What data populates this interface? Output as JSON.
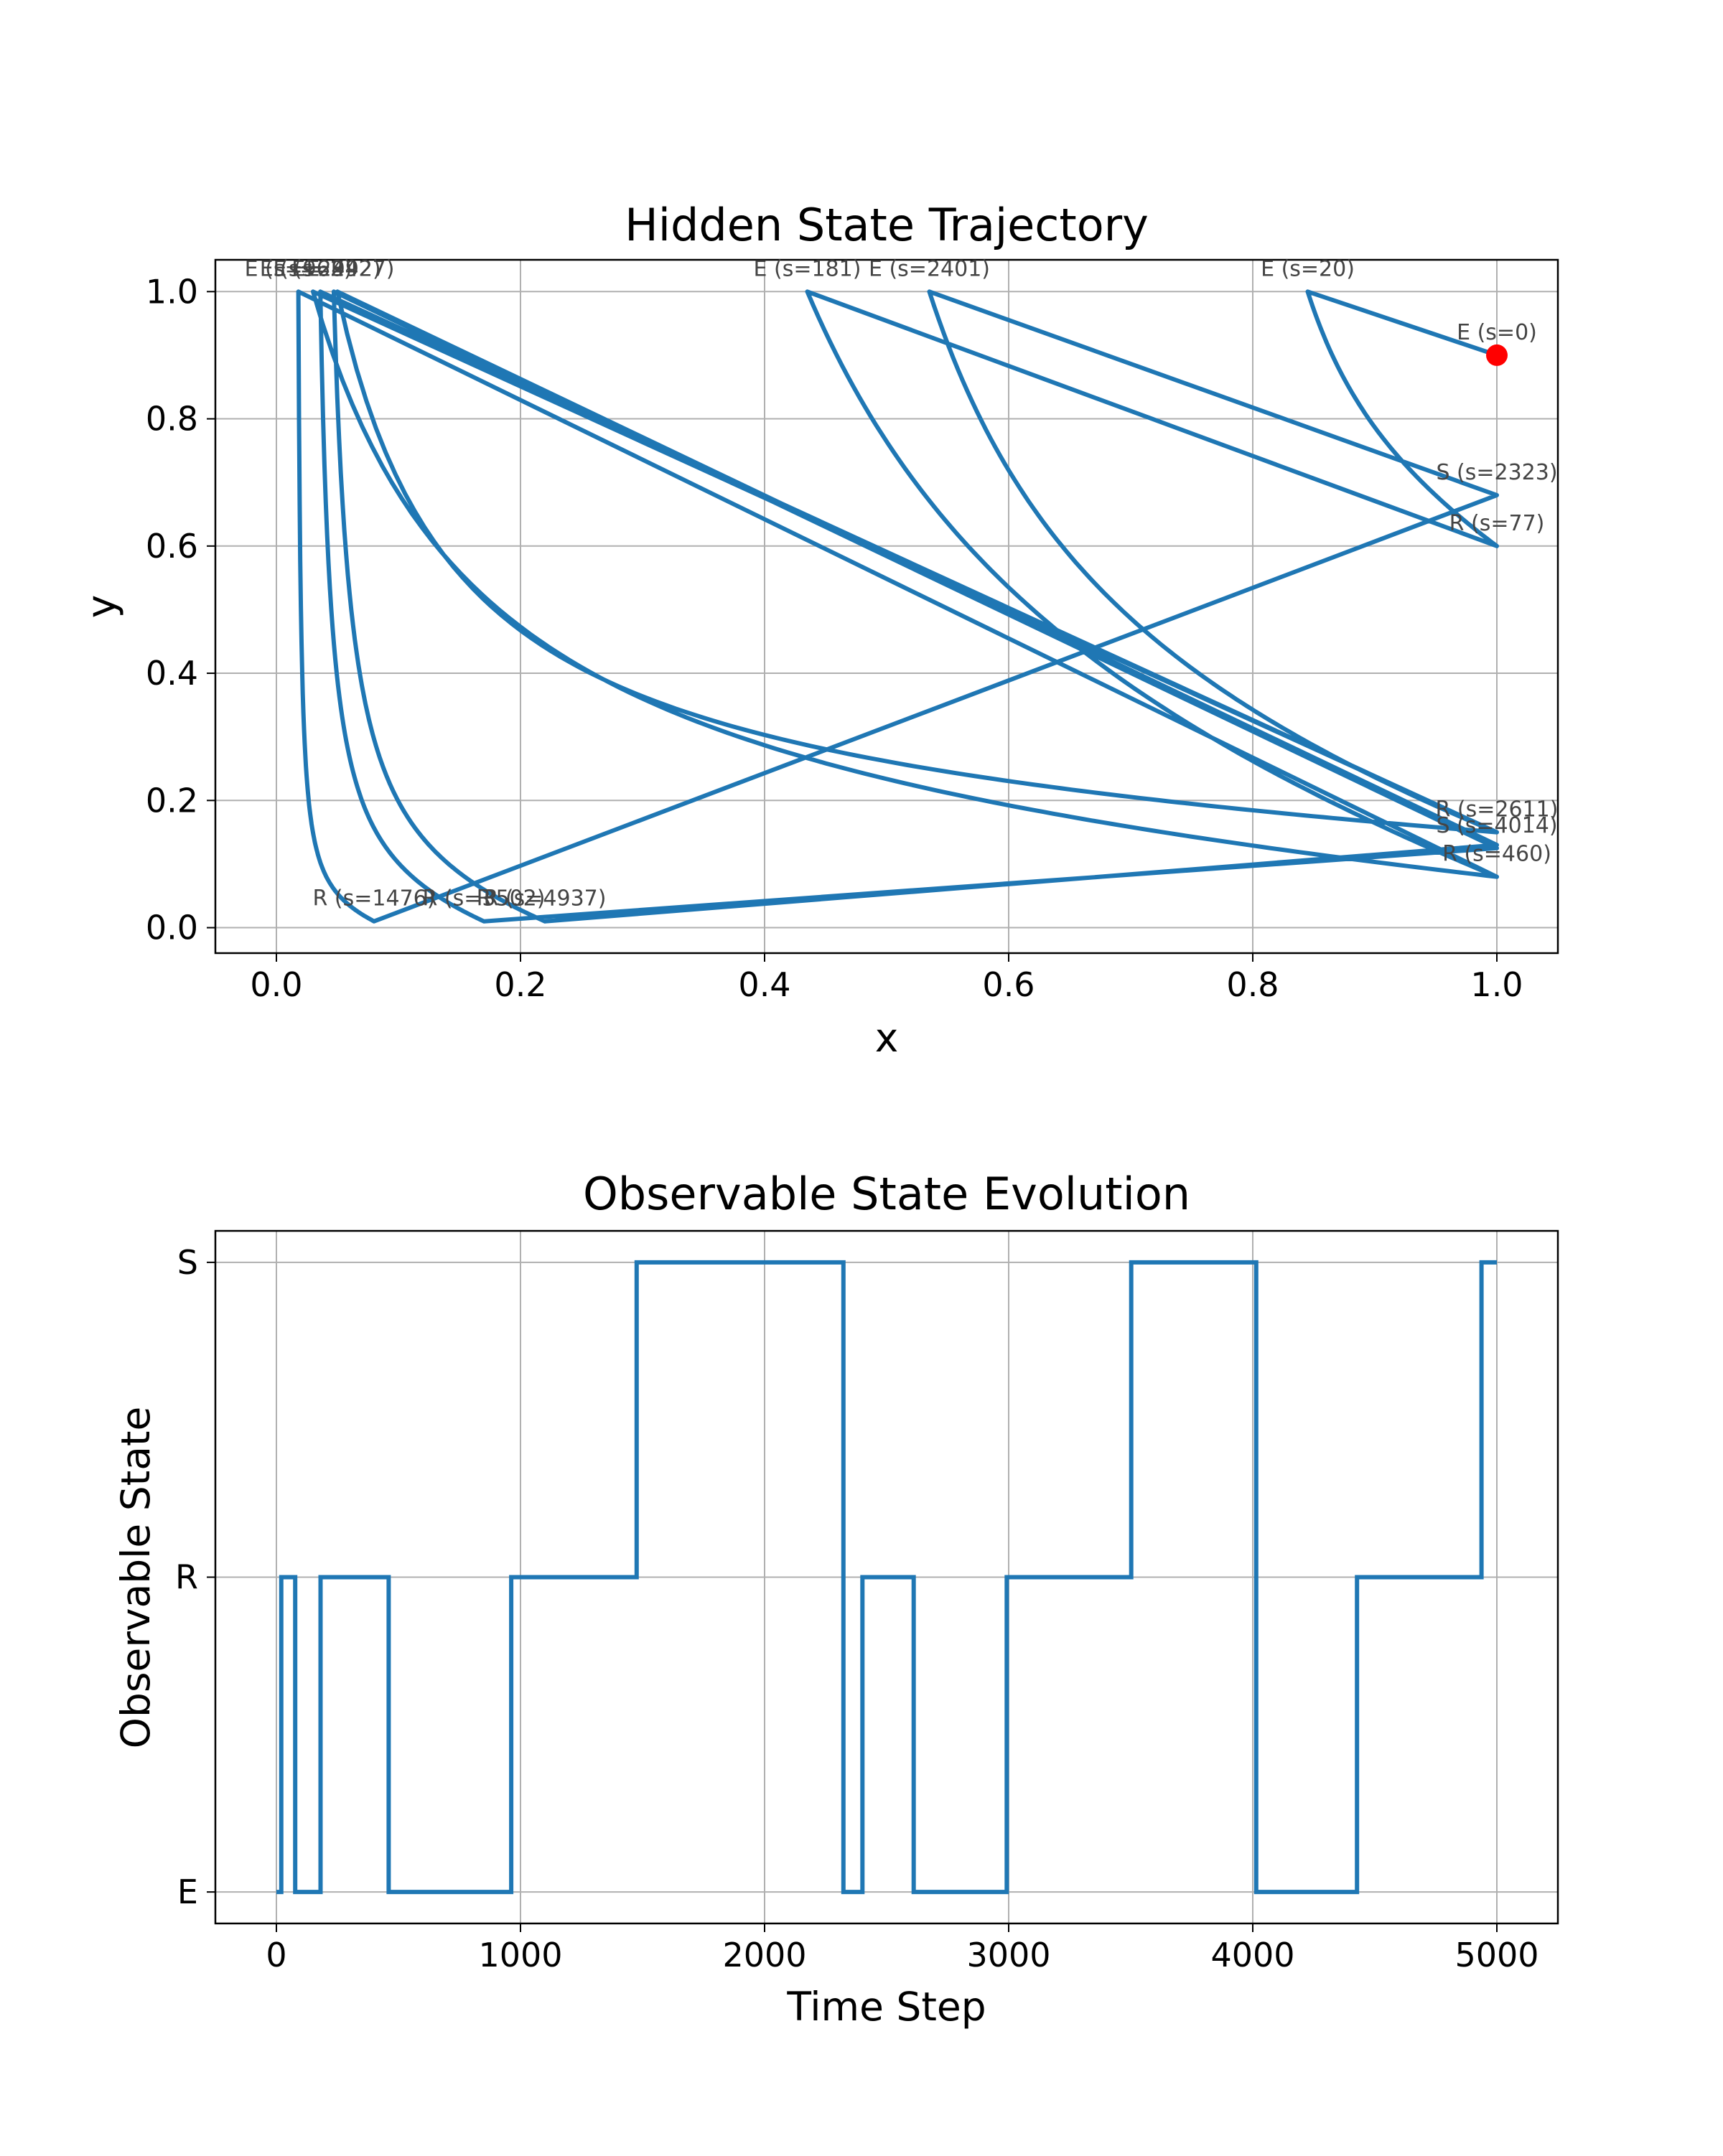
{
  "chart_data": [
    {
      "type": "line",
      "title": "Hidden State Trajectory",
      "xlabel": "x",
      "ylabel": "y",
      "xlim": [
        -0.05,
        1.05
      ],
      "ylim": [
        -0.04,
        1.05
      ],
      "xticks": [
        0.0,
        0.2,
        0.4,
        0.6,
        0.8,
        1.0
      ],
      "xtick_labels": [
        "0.0",
        "0.2",
        "0.4",
        "0.6",
        "0.8",
        "1.0"
      ],
      "yticks": [
        0.0,
        0.2,
        0.4,
        0.6,
        0.8,
        1.0
      ],
      "ytick_labels": [
        "0.0",
        "0.2",
        "0.4",
        "0.6",
        "0.8",
        "1.0"
      ],
      "grid": true,
      "series_color": "#1f77b4",
      "marker_color": "#ff0000",
      "start_point": {
        "x": 1.0,
        "y": 0.9
      },
      "segments": [
        {
          "from": [
            1.0,
            0.9
          ],
          "to": [
            0.845,
            1.0
          ],
          "curve": "line"
        },
        {
          "from": [
            0.845,
            1.0
          ],
          "to": [
            1.0,
            0.6
          ],
          "curve": "decay",
          "k": 2
        },
        {
          "from": [
            1.0,
            0.6
          ],
          "to": [
            0.435,
            1.0
          ],
          "curve": "line"
        },
        {
          "from": [
            0.435,
            1.0
          ],
          "to": [
            1.0,
            0.08
          ],
          "curve": "decay",
          "k": 2.5
        },
        {
          "from": [
            1.0,
            0.08
          ],
          "to": [
            0.018,
            1.0
          ],
          "curve": "line"
        },
        {
          "from": [
            0.018,
            1.0
          ],
          "to": [
            0.08,
            0.01
          ],
          "curve": "decay",
          "k": 30
        },
        {
          "from": [
            0.08,
            0.01
          ],
          "to": [
            1.0,
            0.68
          ],
          "curve": "line"
        },
        {
          "from": [
            1.0,
            0.68
          ],
          "to": [
            0.535,
            1.0
          ],
          "curve": "line"
        },
        {
          "from": [
            0.535,
            1.0
          ],
          "to": [
            1.0,
            0.15
          ],
          "curve": "decay",
          "k": 3
        },
        {
          "from": [
            1.0,
            0.15
          ],
          "to": [
            0.036,
            1.0
          ],
          "curve": "line"
        },
        {
          "from": [
            0.036,
            1.0
          ],
          "to": [
            0.17,
            0.01
          ],
          "curve": "decay",
          "k": 15
        },
        {
          "from": [
            0.17,
            0.01
          ],
          "to": [
            1.0,
            0.125
          ],
          "curve": "line"
        },
        {
          "from": [
            1.0,
            0.125
          ],
          "to": [
            0.047,
            1.0
          ],
          "curve": "line"
        },
        {
          "from": [
            0.047,
            1.0
          ],
          "to": [
            0.22,
            0.01
          ],
          "curve": "decay",
          "k": 12
        },
        {
          "from": [
            0.22,
            0.01
          ],
          "to": [
            1.0,
            0.13
          ],
          "curve": "line"
        },
        {
          "from": [
            1.0,
            0.13
          ],
          "to": [
            0.05,
            1.0
          ],
          "curve": "line"
        },
        {
          "from": [
            0.05,
            1.0
          ],
          "to": [
            1.0,
            0.15
          ],
          "curve": "decay",
          "k": 10
        },
        {
          "from": [
            1.0,
            0.15
          ],
          "to": [
            0.03,
            1.0
          ],
          "curve": "line"
        },
        {
          "from": [
            0.03,
            1.0
          ],
          "to": [
            1.0,
            0.08
          ],
          "curve": "decay",
          "k": 7
        },
        {
          "from": [
            1.0,
            0.08
          ],
          "to": [
            0.018,
            1.0
          ],
          "curve": "line"
        }
      ],
      "annotations": [
        {
          "text": "E (s=0)",
          "x": 1.0,
          "y": 0.9
        },
        {
          "text": "E (s=20)",
          "x": 0.845,
          "y": 1.0
        },
        {
          "text": "R (s=77)",
          "x": 1.0,
          "y": 0.6
        },
        {
          "text": "E (s=181)",
          "x": 0.435,
          "y": 1.0
        },
        {
          "text": "R (s=460)",
          "x": 1.0,
          "y": 0.08
        },
        {
          "text": "E (s=962)",
          "x": 0.018,
          "y": 1.0
        },
        {
          "text": "R (s=1476)",
          "x": 0.08,
          "y": 0.01
        },
        {
          "text": "S (s=2323)",
          "x": 1.0,
          "y": 0.68
        },
        {
          "text": "E (s=2401)",
          "x": 0.535,
          "y": 1.0
        },
        {
          "text": "R (s=2611)",
          "x": 1.0,
          "y": 0.15
        },
        {
          "text": "E (s=2992)",
          "x": 0.036,
          "y": 1.0
        },
        {
          "text": "R (s=3502)",
          "x": 0.17,
          "y": 0.01
        },
        {
          "text": "S (s=4014)",
          "x": 1.0,
          "y": 0.125
        },
        {
          "text": "E (s=4427)",
          "x": 0.047,
          "y": 1.0
        },
        {
          "text": "R (s=4937)",
          "x": 0.22,
          "y": 0.01
        },
        {
          "text": "E",
          "x": 0.018,
          "y": 1.0
        },
        {
          "text": "E",
          "x": 0.03,
          "y": 1.0
        },
        {
          "text": "E",
          "x": 0.05,
          "y": 1.0
        },
        {
          "text": "R",
          "x": 0.17,
          "y": 0.01
        }
      ]
    },
    {
      "type": "line",
      "drawstyle": "steps",
      "title": "Observable State Evolution",
      "xlabel": "Time Step",
      "ylabel": "Observable State",
      "xlim": [
        -250,
        5250
      ],
      "ylim": [
        -0.1,
        2.1
      ],
      "xticks": [
        0,
        1000,
        2000,
        3000,
        4000,
        5000
      ],
      "xtick_labels": [
        "0",
        "1000",
        "2000",
        "3000",
        "4000",
        "5000"
      ],
      "yticks": [
        0,
        1,
        2
      ],
      "ytick_labels": [
        "E",
        "R",
        "S"
      ],
      "grid": true,
      "series_color": "#1f77b4",
      "steps": [
        {
          "x": 0,
          "y": 0
        },
        {
          "x": 20,
          "y": 1
        },
        {
          "x": 77,
          "y": 0
        },
        {
          "x": 181,
          "y": 1
        },
        {
          "x": 460,
          "y": 0
        },
        {
          "x": 962,
          "y": 1
        },
        {
          "x": 1476,
          "y": 2
        },
        {
          "x": 2323,
          "y": 0
        },
        {
          "x": 2401,
          "y": 1
        },
        {
          "x": 2611,
          "y": 0
        },
        {
          "x": 2992,
          "y": 1
        },
        {
          "x": 3502,
          "y": 2
        },
        {
          "x": 4014,
          "y": 0
        },
        {
          "x": 4427,
          "y": 1
        },
        {
          "x": 4937,
          "y": 2
        },
        {
          "x": 5000,
          "y": 2
        }
      ]
    }
  ]
}
